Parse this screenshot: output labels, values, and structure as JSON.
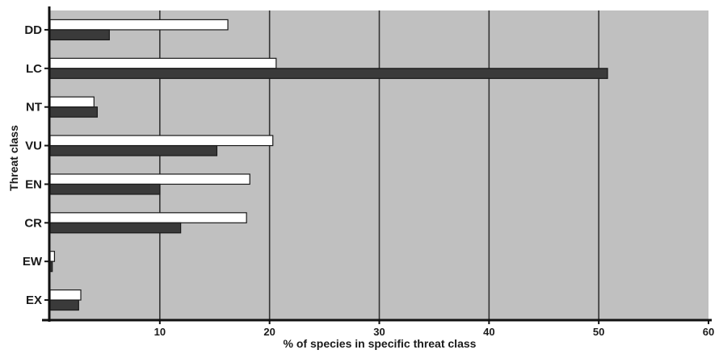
{
  "chart_data": {
    "type": "bar",
    "orientation": "horizontal",
    "title": "",
    "xlabel": "% of species in specific threat class",
    "ylabel": "Threat class",
    "xlim": [
      0,
      60
    ],
    "xticks": [
      10,
      20,
      30,
      40,
      50,
      60
    ],
    "grid": true,
    "legend": "none",
    "categories": [
      "DD",
      "LC",
      "NT",
      "VU",
      "EN",
      "CR",
      "EW",
      "EX"
    ],
    "series": [
      {
        "values": [
          16.2,
          20.6,
          4.0,
          20.3,
          18.2,
          17.9,
          0.4,
          2.8
        ],
        "color": "#ffffff"
      },
      {
        "values": [
          5.4,
          50.8,
          4.3,
          15.2,
          10.0,
          11.9,
          0.2,
          2.6
        ],
        "color": "#3a3a3a"
      }
    ],
    "colors": {
      "plot_background": "#c0c0c0",
      "gridline": "#333333"
    }
  }
}
